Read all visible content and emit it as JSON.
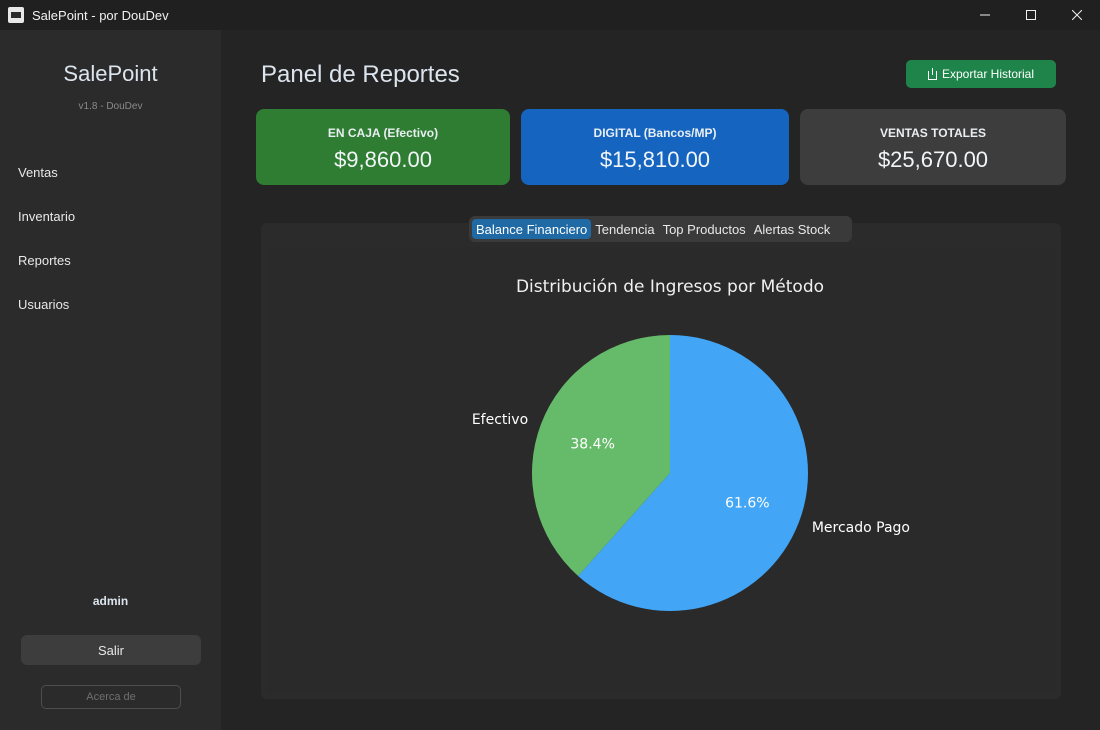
{
  "window": {
    "title": "SalePoint - por DouDev",
    "minimize_glyph": "—",
    "close_glyph": "✕"
  },
  "sidebar": {
    "brand": "SalePoint",
    "version": "v1.8 - DouDev",
    "items": [
      {
        "label": "Ventas"
      },
      {
        "label": "Inventario"
      },
      {
        "label": "Reportes"
      },
      {
        "label": "Usuarios"
      }
    ],
    "user": "admin",
    "logout_label": "Salir",
    "about_label": "Acerca de"
  },
  "main": {
    "title": "Panel de Reportes",
    "export_label": "Exportar Historial",
    "export_icon": "download-icon",
    "cards": [
      {
        "label": "EN CAJA (Efectivo)",
        "value": "$9,860.00",
        "color": "#2e7d32"
      },
      {
        "label": "DIGITAL (Bancos/MP)",
        "value": "$15,810.00",
        "color": "#1565c0"
      },
      {
        "label": "VENTAS TOTALES",
        "value": "$25,670.00",
        "color": "#3d3d3d"
      }
    ],
    "tabs": [
      {
        "label": "Balance Financiero",
        "active": true
      },
      {
        "label": "Tendencia",
        "active": false
      },
      {
        "label": "Top Productos",
        "active": false
      },
      {
        "label": "Alertas Stock",
        "active": false
      }
    ]
  },
  "chart_data": {
    "type": "pie",
    "title": "Distribución de Ingresos por Método",
    "categories": [
      "Mercado Pago",
      "Efectivo"
    ],
    "values": [
      61.6,
      38.4
    ],
    "labels": [
      "61.6%",
      "38.4%"
    ],
    "colors": [
      "#42a5f5",
      "#66bb6a"
    ],
    "legend": "none"
  }
}
